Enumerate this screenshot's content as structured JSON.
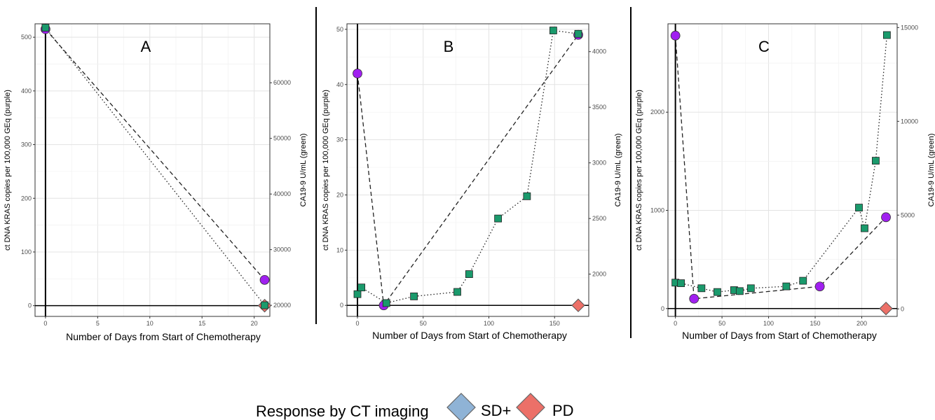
{
  "colors": {
    "ctdna": "#a020f0",
    "ca199": "#1a9a6c",
    "sd_plus": "#8fb3d6",
    "pd": "#ec7068"
  },
  "legend": {
    "title": "Response by CT imaging",
    "items": [
      {
        "label": "SD+",
        "color": "#8fb3d6"
      },
      {
        "label": "PD",
        "color": "#ec7068"
      }
    ]
  },
  "chart_data": [
    {
      "type": "line",
      "panel": "A",
      "xlabel": "Number of Days from Start of Chemotherapy",
      "ylabel": "ct DNA KRAS copies per 100,000 GEq (purple)",
      "y2label": "CA19-9 U/mL (green)",
      "xlim": [
        -1,
        21.5
      ],
      "ylim": [
        -20,
        525
      ],
      "y2lim": [
        18000,
        70600
      ],
      "xticks": [
        0,
        5,
        10,
        15,
        20
      ],
      "yticks": [
        0,
        100,
        200,
        300,
        400,
        500
      ],
      "y2ticks": [
        20000,
        30000,
        40000,
        50000,
        60000
      ],
      "y2ticklabels": [
        "20000",
        "30000",
        "40000",
        "50000",
        "60000"
      ],
      "grid": true,
      "series": [
        {
          "name": "ctDNA KRAS",
          "axis": "left",
          "marker": "circle",
          "line": "dashed",
          "x": [
            0,
            21
          ],
          "y": [
            515,
            48
          ]
        },
        {
          "name": "CA19-9",
          "axis": "right",
          "marker": "square",
          "line": "dotted",
          "x": [
            0,
            21
          ],
          "y": [
            69900,
            20000
          ]
        }
      ],
      "response": [
        {
          "x": 21,
          "y": 0,
          "category": "PD"
        }
      ]
    },
    {
      "type": "line",
      "panel": "B",
      "xlabel": "Number of Days from Start of Chemotherapy",
      "ylabel": "ct DNA KRAS copies per 100,000 GEq (purple)",
      "y2label": "CA19-9 U/mL (green)",
      "xlim": [
        -8,
        176
      ],
      "ylim": [
        -2,
        51
      ],
      "y2lim": [
        1620,
        4250
      ],
      "xticks": [
        0,
        50,
        100,
        150
      ],
      "yticks": [
        0,
        10,
        20,
        30,
        40,
        50
      ],
      "y2ticks": [
        2000,
        2500,
        3000,
        3500,
        4000
      ],
      "y2ticklabels": [
        "2000",
        "2500",
        "3000",
        "3500",
        "4000"
      ],
      "grid": true,
      "series": [
        {
          "name": "ctDNA KRAS",
          "axis": "left",
          "marker": "circle",
          "line": "dashed",
          "x": [
            0,
            20,
            168
          ],
          "y": [
            42,
            0,
            49
          ]
        },
        {
          "name": "CA19-9",
          "axis": "right",
          "marker": "square",
          "line": "dotted",
          "x": [
            0,
            3,
            22,
            43,
            76,
            85,
            107,
            129,
            149,
            168
          ],
          "y": [
            1820,
            1880,
            1740,
            1800,
            1840,
            2000,
            2500,
            2700,
            4190,
            4160
          ]
        }
      ],
      "response": [
        {
          "x": 168,
          "y": 0,
          "category": "PD"
        }
      ]
    },
    {
      "type": "line",
      "panel": "C",
      "xlabel": "Number of Days from Start of Chemotherapy",
      "ylabel": "ct DNA KRAS copies per 100,000 GEq (purple)",
      "y2label": "CA19-9 U/mL (green)",
      "xlim": [
        -8,
        238
      ],
      "ylim": [
        -80,
        2900
      ],
      "y2lim": [
        -400,
        15200
      ],
      "xticks": [
        0,
        50,
        100,
        150,
        200
      ],
      "yticks": [
        0,
        1000,
        2000
      ],
      "y2ticks": [
        0,
        5000,
        10000,
        15000
      ],
      "y2ticklabels": [
        "0",
        "5000",
        "10000",
        "15000"
      ],
      "grid": true,
      "series": [
        {
          "name": "ctDNA KRAS",
          "axis": "left",
          "marker": "circle",
          "line": "dashed",
          "x": [
            0,
            20,
            155,
            226
          ],
          "y": [
            2780,
            100,
            225,
            930
          ]
        },
        {
          "name": "CA19-9",
          "axis": "right",
          "marker": "square",
          "line": "dotted",
          "x": [
            0,
            6,
            28,
            45,
            63,
            69,
            81,
            119,
            137,
            197,
            203,
            215,
            227
          ],
          "y": [
            1400,
            1370,
            1100,
            900,
            1000,
            950,
            1100,
            1200,
            1500,
            5400,
            4300,
            7900,
            14600
          ]
        }
      ],
      "response": [
        {
          "x": 226,
          "y": 0,
          "category": "PD"
        }
      ]
    }
  ]
}
